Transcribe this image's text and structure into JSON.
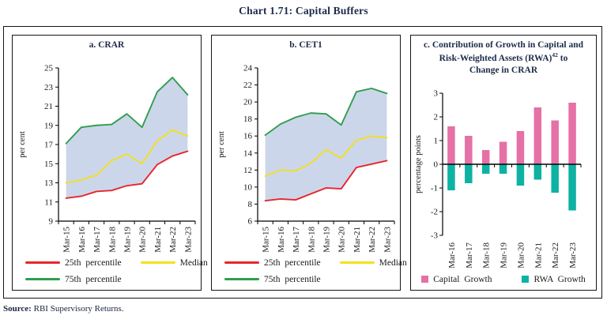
{
  "title": "Chart 1.71: Capital Buffers",
  "panels": [
    {
      "title": "a. CRAR"
    },
    {
      "title": "b. CET1"
    },
    {
      "title_line1": "c. Contribution of Growth in Capital and",
      "title_line2a": "Risk-Weighted Assets (RWA)",
      "title_sup": "42",
      "title_line2b": " to",
      "title_line3": "Change in CRAR"
    }
  ],
  "source": {
    "label": "Source:",
    "text": "RBI Supervisory Returns."
  },
  "colors": {
    "band_fill": "#ccd6eb",
    "p25_red": "#e8252c",
    "median_yellow": "#f2e01e",
    "p75_green": "#2f9e4f",
    "capital_pink": "#e571a6",
    "rwa_teal": "#0eb2a3",
    "title_navy": "#1c2b4a"
  },
  "chart_data": [
    {
      "type": "area",
      "title": "a. CRAR",
      "categories": [
        "Mar-15",
        "Mar-16",
        "Mar-17",
        "Mar-18",
        "Mar-19",
        "Mar-20",
        "Mar-21",
        "Mar-22",
        "Mar-23"
      ],
      "series": [
        {
          "name": "25th percentile",
          "color": "#e8252c",
          "values": [
            11.4,
            11.6,
            12.1,
            12.2,
            12.7,
            12.9,
            14.9,
            15.8,
            16.3
          ]
        },
        {
          "name": "Median",
          "color": "#f2e01e",
          "values": [
            13.0,
            13.3,
            13.8,
            15.3,
            16.0,
            15.0,
            17.4,
            18.5,
            17.9
          ]
        },
        {
          "name": "75th percentile",
          "color": "#2f9e4f",
          "values": [
            17.1,
            18.8,
            19.0,
            19.1,
            20.2,
            18.8,
            22.5,
            24.0,
            22.2
          ]
        }
      ],
      "band": {
        "lower": "25th percentile",
        "upper": "75th percentile",
        "fill": "#ccd6eb"
      },
      "xlabel": "",
      "ylabel": "per cent",
      "ylim": [
        9,
        25
      ],
      "ytick_step": 2,
      "grid": false,
      "legend_position": "bottom"
    },
    {
      "type": "area",
      "title": "b. CET1",
      "categories": [
        "Mar-15",
        "Mar-16",
        "Mar-17",
        "Mar-18",
        "Mar-19",
        "Mar-20",
        "Mar-21",
        "Mar-22",
        "Mar-23"
      ],
      "series": [
        {
          "name": "25th percentile",
          "color": "#e8252c",
          "values": [
            8.4,
            8.6,
            8.5,
            9.2,
            9.9,
            9.8,
            12.3,
            12.7,
            13.1
          ]
        },
        {
          "name": "Median",
          "color": "#f2e01e",
          "values": [
            11.3,
            12.0,
            11.9,
            12.8,
            14.4,
            13.4,
            15.5,
            16.0,
            15.8
          ]
        },
        {
          "name": "75th percentile",
          "color": "#2f9e4f",
          "values": [
            16.1,
            17.4,
            18.2,
            18.7,
            18.6,
            17.3,
            21.2,
            21.6,
            21.0
          ]
        }
      ],
      "band": {
        "lower": "25th percentile",
        "upper": "75th percentile",
        "fill": "#ccd6eb"
      },
      "xlabel": "",
      "ylabel": "per cent",
      "ylim": [
        6,
        24
      ],
      "ytick_step": 2,
      "grid": false,
      "legend_position": "bottom"
    },
    {
      "type": "bar",
      "title": "c. Contribution of Growth in Capital and Risk-Weighted Assets (RWA) to Change in CRAR",
      "categories": [
        "Mar-16",
        "Mar-17",
        "Mar-18",
        "Mar-19",
        "Mar-20",
        "Mar-21",
        "Mar-22",
        "Mar-23"
      ],
      "series": [
        {
          "name": "Capital Growth",
          "color": "#e571a6",
          "values": [
            1.6,
            1.2,
            0.6,
            0.95,
            1.4,
            2.4,
            1.85,
            2.6
          ]
        },
        {
          "name": "RWA Growth",
          "color": "#0eb2a3",
          "values": [
            -1.1,
            -0.8,
            -0.4,
            -0.4,
            -0.9,
            -0.65,
            -1.2,
            -1.95
          ]
        }
      ],
      "xlabel": "",
      "ylabel": "percentage points",
      "ylim": [
        -3,
        3
      ],
      "ytick_step": 1,
      "grid": false,
      "legend_position": "bottom"
    }
  ]
}
